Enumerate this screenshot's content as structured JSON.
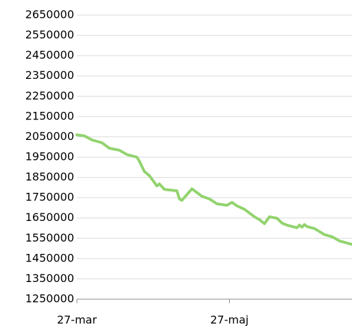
{
  "chart_data": {
    "type": "line",
    "x": [
      0,
      3,
      6,
      10,
      13,
      17,
      20,
      24,
      25,
      27,
      29,
      32,
      33,
      35,
      40,
      41,
      42,
      46,
      50,
      53,
      56,
      60,
      62,
      64,
      67,
      71,
      73,
      75,
      77,
      80,
      82,
      84,
      88,
      89,
      90,
      91,
      92,
      95,
      99,
      102,
      105,
      110
    ],
    "series": [
      {
        "color": "#92d36e",
        "values": [
          2060000,
          2055000,
          2035000,
          2021000,
          1994000,
          1984000,
          1963000,
          1950000,
          1930000,
          1879000,
          1859000,
          1808000,
          1818000,
          1791000,
          1784000,
          1744000,
          1737000,
          1794000,
          1757000,
          1744000,
          1720000,
          1713000,
          1727000,
          1710000,
          1693000,
          1656000,
          1642000,
          1622000,
          1656000,
          1649000,
          1625000,
          1615000,
          1602000,
          1615000,
          1605000,
          1618000,
          1608000,
          1598000,
          1568000,
          1558000,
          1537000,
          1520000
        ]
      }
    ],
    "xlim": [
      0,
      110
    ],
    "xticks": [
      {
        "value": 0,
        "label": "27-mar"
      },
      {
        "value": 61,
        "label": "27-maj"
      }
    ],
    "ylim": [
      1250000,
      2650000
    ],
    "yticks": [
      1250000,
      1350000,
      1450000,
      1550000,
      1650000,
      1750000,
      1850000,
      1950000,
      2050000,
      2150000,
      2250000,
      2350000,
      2450000,
      2550000,
      2650000
    ],
    "grid": true
  }
}
